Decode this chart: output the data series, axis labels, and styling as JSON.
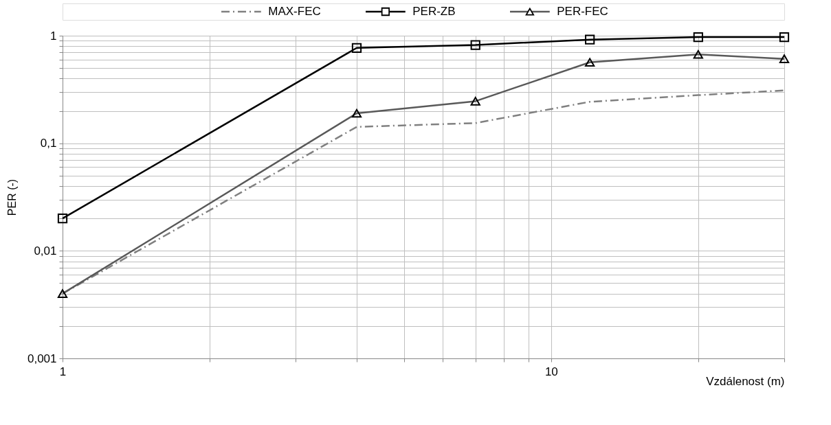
{
  "chart_data": {
    "type": "line",
    "xlabel": "Vzdálenost (m)",
    "ylabel": "PER (-)",
    "log": "xy",
    "grid": true,
    "legend": "top",
    "x": [
      1,
      4,
      7,
      12,
      20,
      30
    ],
    "xlim": [
      1,
      30
    ],
    "xticks": [
      1,
      {
        "value": 2,
        "label": null
      },
      {
        "value": 3,
        "label": null
      },
      {
        "value": 4,
        "label": null
      },
      {
        "value": 5,
        "label": null
      },
      {
        "value": 6,
        "label": null
      },
      {
        "value": 7,
        "label": null
      },
      {
        "value": 8,
        "label": null
      },
      {
        "value": 9,
        "label": null
      },
      10,
      {
        "value": 20,
        "label": null
      },
      {
        "value": 30,
        "label": null
      }
    ],
    "ylim": [
      0.001,
      1
    ],
    "yticks": [
      {
        "value": 0.001,
        "label": "0,001"
      },
      {
        "value": 0.002,
        "label": null
      },
      {
        "value": 0.003,
        "label": null
      },
      {
        "value": 0.004,
        "label": null
      },
      {
        "value": 0.005,
        "label": null
      },
      {
        "value": 0.006,
        "label": null
      },
      {
        "value": 0.007,
        "label": null
      },
      {
        "value": 0.008,
        "label": null
      },
      {
        "value": 0.009,
        "label": null
      },
      {
        "value": 0.01,
        "label": "0,01"
      },
      {
        "value": 0.02,
        "label": null
      },
      {
        "value": 0.03,
        "label": null
      },
      {
        "value": 0.04,
        "label": null
      },
      {
        "value": 0.05,
        "label": null
      },
      {
        "value": 0.06,
        "label": null
      },
      {
        "value": 0.07,
        "label": null
      },
      {
        "value": 0.08,
        "label": null
      },
      {
        "value": 0.09,
        "label": null
      },
      {
        "value": 0.1,
        "label": "0,1"
      },
      {
        "value": 0.2,
        "label": null
      },
      {
        "value": 0.3,
        "label": null
      },
      {
        "value": 0.4,
        "label": null
      },
      {
        "value": 0.5,
        "label": null
      },
      {
        "value": 0.6,
        "label": null
      },
      {
        "value": 0.7,
        "label": null
      },
      {
        "value": 0.8,
        "label": null
      },
      {
        "value": 0.9,
        "label": null
      },
      1
    ],
    "series": [
      {
        "name": "MAX-FEC",
        "color": "#808080",
        "line_style": "dashed",
        "marker": "none",
        "values": [
          0.004,
          0.142,
          0.154,
          0.243,
          0.28,
          0.31
        ]
      },
      {
        "name": "PER-ZB",
        "color": "#000000",
        "line_style": "solid",
        "marker": "square",
        "values": [
          0.02,
          0.77,
          0.82,
          0.92,
          0.97,
          0.97
        ]
      },
      {
        "name": "PER-FEC",
        "color": "#595959",
        "line_style": "solid",
        "marker": "triangle",
        "values": [
          0.004,
          0.19,
          0.246,
          0.566,
          0.67,
          0.61
        ]
      }
    ]
  }
}
